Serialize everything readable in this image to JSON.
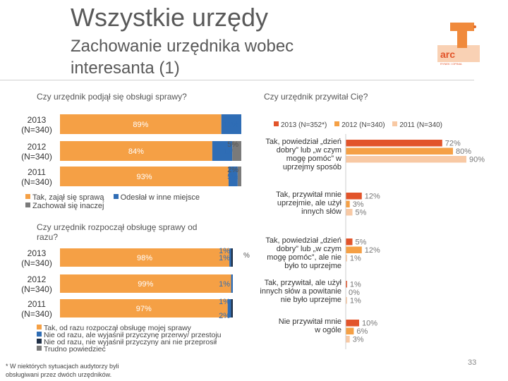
{
  "title": "Wszystkie urzędy",
  "subtitle": "Zachowanie urzędnika wobec interesanta (1)",
  "page_number": "33",
  "footnote": "* W niektórych sytuacjach audytorzy byli obsługiwani przez dwóch urzędników.",
  "colors": {
    "orange": "#f5a045",
    "blue": "#2f6db5",
    "red": "#e2542a",
    "peach": "#f8c9a4",
    "dark": "#1f2f46",
    "gray": "#7a7a7a"
  },
  "chart_data": [
    {
      "type": "bar",
      "stacked": true,
      "orientation": "horizontal",
      "title": "Czy urzędnik podjął się obsługi sprawy?",
      "categories": [
        "2013 (N=340)",
        "2012 (N=340)",
        "2011 (N=340)"
      ],
      "series": [
        {
          "name": "Tak, zajął się sprawą",
          "color": "#f5a045",
          "values": [
            89,
            84,
            93
          ],
          "labels": [
            "89%",
            "84%",
            "93%"
          ]
        },
        {
          "name": "Odesłał w inne miejsce",
          "color": "#2f6db5",
          "values": [
            11,
            11,
            5
          ],
          "labels": [
            "11%",
            "11%",
            "5%"
          ]
        },
        {
          "name": "Zachował się inaczej",
          "color": "#7a7a7a",
          "values": [
            0,
            5,
            2
          ],
          "labels": [
            "",
            "5%",
            "2%"
          ]
        }
      ],
      "xlim": [
        0,
        100
      ]
    },
    {
      "type": "bar",
      "stacked": true,
      "orientation": "horizontal",
      "title": "Czy urzędnik rozpoczął obsługę sprawy od razu?",
      "categories": [
        "2013 (N=340)",
        "2012 (N=340)",
        "2011 (N=340)"
      ],
      "series": [
        {
          "name": "Tak, od razu rozpoczął obsługę mojej sprawy",
          "color": "#f5a045",
          "values": [
            98,
            99,
            97
          ],
          "labels": [
            "98%",
            "99%",
            "97%"
          ]
        },
        {
          "name": "Nie od razu, ale wyjaśnił przyczynę przerwy/ przestoju",
          "color": "#2f6db5",
          "values": [
            1,
            1,
            2
          ],
          "labels": [
            "1%",
            "1%",
            "2%"
          ]
        },
        {
          "name": "Nie od razu, nie wyjaśnił przyczyny ani nie przeprosił",
          "color": "#1f2f46",
          "values": [
            1,
            0,
            1
          ],
          "labels": [
            "1%",
            "",
            "1%"
          ]
        },
        {
          "name": "Trudno powiedzieć",
          "color": "#7a7a7a",
          "values": [
            0,
            0,
            0
          ],
          "labels": [
            "",
            "",
            ""
          ]
        }
      ],
      "xlim": [
        0,
        100
      ]
    },
    {
      "type": "bar",
      "orientation": "horizontal",
      "title": "Czy urzędnik przywitał Cię?",
      "legend": [
        "2013 (N=352*)",
        "2012 (N=340)",
        "2011 (N=340)"
      ],
      "categories": [
        "Tak, powiedział „dzień dobry” lub „w czym mogę pomóc” w uprzejmy sposób",
        "Tak, przywitał mnie uprzejmie, ale użył innych słów",
        "Tak, powiedział „dzień dobry” lub „w czym mogę pomóc”, ale nie było to uprzejme",
        "Tak, przywitał, ale użył innych słów a powitanie nie było uprzejme",
        "Nie przywitał mnie w ogóle"
      ],
      "series": [
        {
          "name": "2013 (N=352*)",
          "color": "#e2542a",
          "values": [
            72,
            12,
            5,
            1,
            10
          ],
          "labels": [
            "72%",
            "12%",
            "5%",
            "1%",
            "10%"
          ]
        },
        {
          "name": "2012 (N=340)",
          "color": "#f5a045",
          "values": [
            80,
            3,
            12,
            0,
            6
          ],
          "labels": [
            "80%",
            "3%",
            "12%",
            "0%",
            "6%"
          ]
        },
        {
          "name": "2011 (N=340)",
          "color": "#f8c9a4",
          "values": [
            90,
            5,
            1,
            1,
            3
          ],
          "labels": [
            "90%",
            "5%",
            "1%",
            "1%",
            "3%"
          ]
        }
      ],
      "xlim": [
        0,
        100
      ]
    }
  ],
  "stray_label": "%"
}
